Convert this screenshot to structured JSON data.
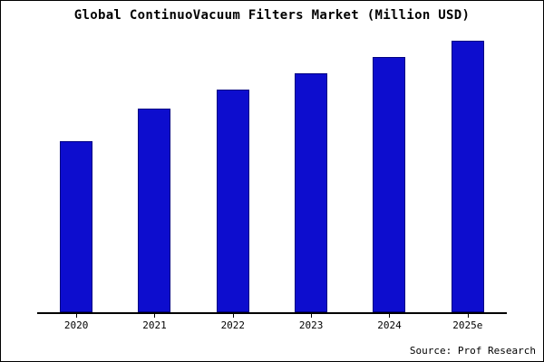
{
  "title": "Global ContinuoVacuum Filters Market (Million USD)",
  "source": "Source: Prof Research",
  "colors": {
    "bar_fill": "#0D0DCE",
    "bar_edge": "#000082",
    "axis": "#000000"
  },
  "chart_data": {
    "type": "bar",
    "title": "Global ContinuoVacuum Filters Market (Million USD)",
    "categories": [
      "2020",
      "2021",
      "2022",
      "2023",
      "2024",
      "2025e"
    ],
    "values": [
      63,
      75,
      82,
      88,
      94,
      100
    ],
    "xlabel": "",
    "ylabel": "",
    "ylim": [
      0,
      100
    ],
    "grid": false,
    "legend": false,
    "source": "Source: Prof Research"
  }
}
